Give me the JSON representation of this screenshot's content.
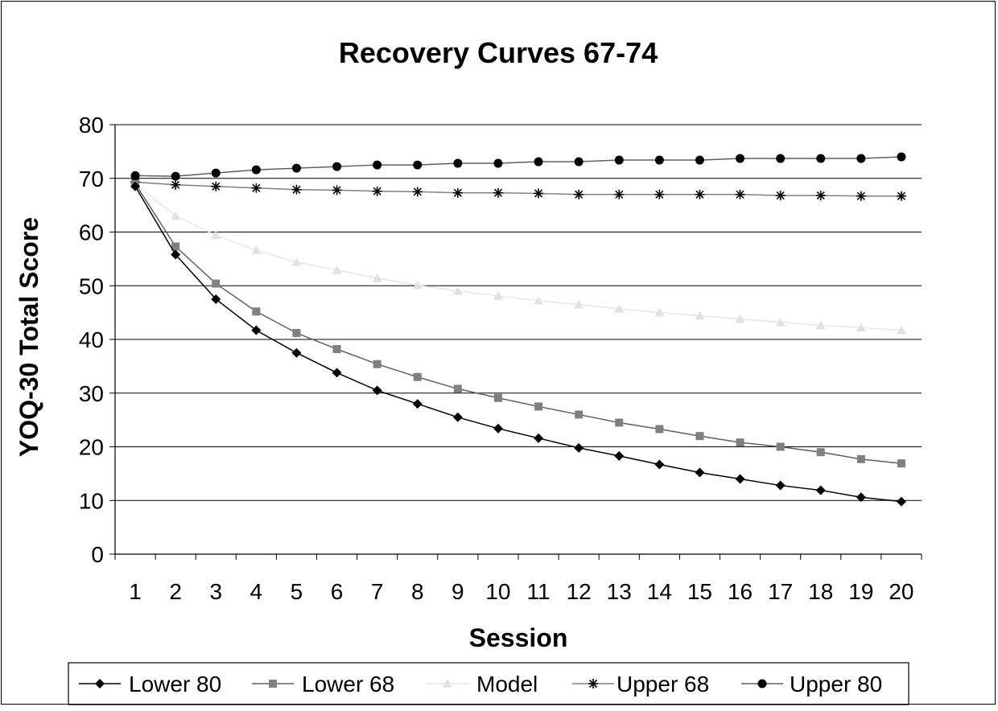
{
  "chart_data": {
    "type": "line",
    "title": "Recovery Curves 67-74",
    "xlabel": "Session",
    "ylabel": "YOQ-30 Total Score",
    "ylim": [
      0,
      80
    ],
    "yticks": [
      "0",
      "10",
      "20",
      "30",
      "40",
      "50",
      "60",
      "70",
      "80"
    ],
    "categories": [
      "1",
      "2",
      "3",
      "4",
      "5",
      "6",
      "7",
      "8",
      "9",
      "10",
      "11",
      "12",
      "13",
      "14",
      "15",
      "16",
      "17",
      "18",
      "19",
      "20"
    ],
    "grid": "horizontal",
    "legend_position": "bottom",
    "series": [
      {
        "name": "Lower 80",
        "marker": "diamond",
        "color": "#000000",
        "line_color": "#000000",
        "values": [
          68.5,
          55.8,
          47.5,
          41.7,
          37.5,
          33.8,
          30.5,
          28.0,
          25.5,
          23.4,
          21.6,
          19.8,
          18.3,
          16.7,
          15.2,
          14.0,
          12.8,
          11.9,
          10.6,
          9.8
        ]
      },
      {
        "name": "Lower 68",
        "marker": "square",
        "color": "#808080",
        "line_color": "#606060",
        "values": [
          69.0,
          57.3,
          50.4,
          45.2,
          41.2,
          38.2,
          35.4,
          33.0,
          30.8,
          29.1,
          27.5,
          26.0,
          24.5,
          23.3,
          22.0,
          20.8,
          20.0,
          19.0,
          17.7,
          16.9
        ]
      },
      {
        "name": "Model",
        "marker": "triangle",
        "color": "#e2e2e2",
        "line_color": "#e6e6e6",
        "values": [
          69.0,
          63.0,
          59.4,
          56.6,
          54.4,
          52.9,
          51.4,
          50.1,
          49.0,
          48.1,
          47.2,
          46.5,
          45.7,
          45.0,
          44.4,
          43.8,
          43.2,
          42.6,
          42.2,
          41.7
        ]
      },
      {
        "name": "Upper 68",
        "marker": "star",
        "color": "#000000",
        "line_color": "#808080",
        "values": [
          69.3,
          68.8,
          68.5,
          68.2,
          67.9,
          67.8,
          67.6,
          67.5,
          67.3,
          67.3,
          67.2,
          67.0,
          67.0,
          67.0,
          67.0,
          67.0,
          66.8,
          66.8,
          66.7,
          66.7
        ]
      },
      {
        "name": "Upper 80",
        "marker": "circle",
        "color": "#000000",
        "line_color": "#606060",
        "values": [
          70.5,
          70.4,
          71.0,
          71.6,
          71.9,
          72.2,
          72.5,
          72.5,
          72.8,
          72.8,
          73.1,
          73.1,
          73.4,
          73.4,
          73.4,
          73.7,
          73.7,
          73.7,
          73.7,
          74.0
        ]
      }
    ]
  }
}
